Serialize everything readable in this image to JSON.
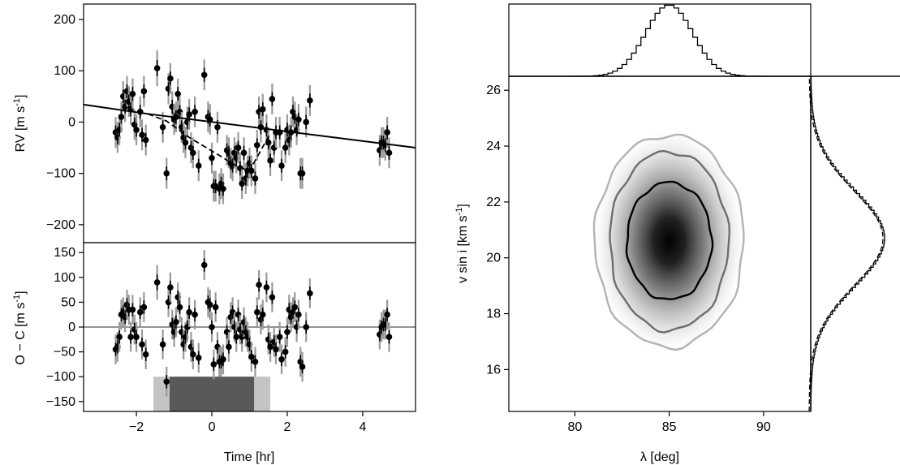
{
  "chart_data": [
    {
      "type": "scatter",
      "panel": "rv",
      "ylabel": "RV [m s",
      "ylabel_sup": "-1",
      "ylabel_end": "]",
      "xlim": [
        -3.4,
        5.4
      ],
      "ylim": [
        -235,
        230
      ],
      "yticks": [
        -200,
        -100,
        0,
        100,
        200
      ],
      "ytick_labels": [
        "−200",
        "−100",
        "0",
        "100",
        "200"
      ],
      "xticks": [
        -2,
        0,
        2,
        4
      ],
      "model_line": [
        [
          -3.4,
          34
        ],
        [
          -1.7,
          16
        ],
        [
          5.4,
          -50
        ]
      ],
      "model_dashed": [
        [
          -1.7,
          16
        ],
        [
          -1.2,
          2
        ],
        [
          -0.6,
          -30
        ],
        [
          0.2,
          -65
        ],
        [
          0.7,
          -88
        ],
        [
          1.0,
          -95
        ],
        [
          1.3,
          -55
        ],
        [
          1.55,
          -22
        ]
      ],
      "points": [
        [
          -2.55,
          -20,
          30
        ],
        [
          -2.5,
          -30,
          30
        ],
        [
          -2.45,
          -15,
          30
        ],
        [
          -2.4,
          10,
          30
        ],
        [
          -2.35,
          50,
          30
        ],
        [
          -2.3,
          30,
          30
        ],
        [
          -2.25,
          60,
          30
        ],
        [
          -2.2,
          40,
          30
        ],
        [
          -2.15,
          25,
          30
        ],
        [
          -2.1,
          55,
          30
        ],
        [
          -2.05,
          -5,
          30
        ],
        [
          -2.0,
          -15,
          30
        ],
        [
          -1.9,
          20,
          30
        ],
        [
          -1.85,
          -25,
          30
        ],
        [
          -1.8,
          60,
          30
        ],
        [
          -1.75,
          -35,
          30
        ],
        [
          -1.45,
          105,
          35
        ],
        [
          -1.3,
          -10,
          30
        ],
        [
          -1.2,
          -100,
          30
        ],
        [
          -1.15,
          65,
          30
        ],
        [
          -1.1,
          85,
          30
        ],
        [
          -1.05,
          30,
          30
        ],
        [
          -1.0,
          5,
          30
        ],
        [
          -0.95,
          10,
          30
        ],
        [
          -0.9,
          55,
          30
        ],
        [
          -0.85,
          20,
          30
        ],
        [
          -0.8,
          -10,
          30
        ],
        [
          -0.75,
          -30,
          30
        ],
        [
          -0.7,
          -40,
          30
        ],
        [
          -0.65,
          0,
          30
        ],
        [
          -0.6,
          15,
          30
        ],
        [
          -0.55,
          -50,
          30
        ],
        [
          -0.5,
          -60,
          30
        ],
        [
          -0.45,
          20,
          30
        ],
        [
          -0.35,
          -85,
          30
        ],
        [
          -0.2,
          92,
          30
        ],
        [
          -0.1,
          10,
          30
        ],
        [
          -0.05,
          5,
          30
        ],
        [
          0.0,
          -70,
          30
        ],
        [
          0.05,
          -125,
          30
        ],
        [
          0.1,
          -125,
          30
        ],
        [
          0.15,
          -10,
          30
        ],
        [
          0.2,
          -130,
          30
        ],
        [
          0.25,
          -120,
          30
        ],
        [
          0.3,
          -130,
          30
        ],
        [
          0.4,
          -55,
          30
        ],
        [
          0.45,
          -60,
          30
        ],
        [
          0.5,
          -80,
          30
        ],
        [
          0.55,
          -85,
          30
        ],
        [
          0.6,
          -60,
          30
        ],
        [
          0.65,
          -70,
          30
        ],
        [
          0.7,
          -50,
          30
        ],
        [
          0.75,
          -90,
          30
        ],
        [
          0.8,
          -120,
          30
        ],
        [
          0.85,
          -60,
          30
        ],
        [
          0.9,
          -110,
          30
        ],
        [
          0.95,
          -95,
          30
        ],
        [
          1.0,
          -80,
          30
        ],
        [
          1.05,
          -95,
          30
        ],
        [
          1.15,
          -110,
          30
        ],
        [
          1.2,
          -45,
          30
        ],
        [
          1.25,
          20,
          30
        ],
        [
          1.3,
          -10,
          30
        ],
        [
          1.35,
          25,
          30
        ],
        [
          1.45,
          -15,
          30
        ],
        [
          1.5,
          -40,
          30
        ],
        [
          1.55,
          -75,
          30
        ],
        [
          1.6,
          45,
          30
        ],
        [
          1.65,
          -50,
          30
        ],
        [
          1.7,
          -20,
          30
        ],
        [
          1.8,
          -20,
          30
        ],
        [
          1.85,
          -85,
          30
        ],
        [
          1.95,
          -50,
          30
        ],
        [
          2.0,
          -15,
          30
        ],
        [
          2.05,
          -35,
          30
        ],
        [
          2.1,
          -20,
          30
        ],
        [
          2.15,
          20,
          30
        ],
        [
          2.2,
          10,
          30
        ],
        [
          2.25,
          -15,
          30
        ],
        [
          2.3,
          5,
          30
        ],
        [
          2.35,
          -100,
          30
        ],
        [
          2.4,
          -100,
          30
        ],
        [
          2.5,
          0,
          30
        ],
        [
          2.6,
          42,
          30
        ],
        [
          4.45,
          -55,
          30
        ],
        [
          4.5,
          -40,
          30
        ],
        [
          4.55,
          -40,
          30
        ],
        [
          4.6,
          -45,
          30
        ],
        [
          4.65,
          -20,
          30
        ],
        [
          4.7,
          -60,
          30
        ]
      ]
    },
    {
      "type": "scatter",
      "panel": "residuals",
      "ylabel": "O − C [m s",
      "ylabel_sup": "-1",
      "ylabel_end": "]",
      "xlabel": "Time [hr]",
      "xlim": [
        -3.4,
        5.4
      ],
      "ylim": [
        -170,
        170
      ],
      "yticks": [
        -150,
        -100,
        -50,
        0,
        50,
        100,
        150
      ],
      "ytick_labels": [
        "−150",
        "−100",
        "−50",
        "0",
        "50",
        "100",
        "150"
      ],
      "xticks": [
        -2,
        0,
        2,
        4
      ],
      "xtick_labels": [
        "−2",
        "0",
        "2",
        "4"
      ],
      "zero_line": 0,
      "transit_bands": [
        {
          "x0": -1.55,
          "x1": 1.55,
          "y0": -170,
          "y1": -100,
          "color": "#c4c4c4"
        },
        {
          "x0": -1.12,
          "x1": 1.12,
          "y0": -170,
          "y1": -100,
          "color": "#595959"
        }
      ],
      "points": [
        [
          -2.55,
          -45,
          30
        ],
        [
          -2.5,
          -40,
          30
        ],
        [
          -2.45,
          -20,
          30
        ],
        [
          -2.4,
          25,
          30
        ],
        [
          -2.35,
          30,
          30
        ],
        [
          -2.3,
          20,
          30
        ],
        [
          -2.25,
          45,
          30
        ],
        [
          -2.2,
          35,
          30
        ],
        [
          -2.15,
          -20,
          30
        ],
        [
          -2.1,
          35,
          30
        ],
        [
          -2.05,
          -5,
          30
        ],
        [
          -2.0,
          -20,
          30
        ],
        [
          -1.9,
          30,
          30
        ],
        [
          -1.85,
          -35,
          30
        ],
        [
          -1.8,
          40,
          30
        ],
        [
          -1.75,
          -55,
          30
        ],
        [
          -1.45,
          90,
          35
        ],
        [
          -1.3,
          -35,
          30
        ],
        [
          -1.2,
          -110,
          30
        ],
        [
          -1.15,
          50,
          30
        ],
        [
          -1.1,
          80,
          30
        ],
        [
          -1.05,
          5,
          30
        ],
        [
          -1.0,
          -10,
          30
        ],
        [
          -0.95,
          10,
          30
        ],
        [
          -0.9,
          60,
          30
        ],
        [
          -0.85,
          40,
          30
        ],
        [
          -0.8,
          -10,
          30
        ],
        [
          -0.75,
          -35,
          30
        ],
        [
          -0.7,
          -20,
          30
        ],
        [
          -0.65,
          0,
          30
        ],
        [
          -0.6,
          30,
          30
        ],
        [
          -0.55,
          -40,
          30
        ],
        [
          -0.5,
          -55,
          30
        ],
        [
          -0.45,
          25,
          30
        ],
        [
          -0.35,
          -62,
          30
        ],
        [
          -0.2,
          125,
          30
        ],
        [
          -0.1,
          50,
          30
        ],
        [
          -0.05,
          45,
          30
        ],
        [
          0.0,
          0,
          30
        ],
        [
          0.05,
          -75,
          30
        ],
        [
          0.1,
          40,
          30
        ],
        [
          0.15,
          -40,
          30
        ],
        [
          0.2,
          -70,
          30
        ],
        [
          0.25,
          -70,
          30
        ],
        [
          0.3,
          -65,
          30
        ],
        [
          0.4,
          -10,
          30
        ],
        [
          0.45,
          -40,
          30
        ],
        [
          0.5,
          20,
          30
        ],
        [
          0.55,
          30,
          30
        ],
        [
          0.6,
          0,
          30
        ],
        [
          0.65,
          -20,
          30
        ],
        [
          0.7,
          25,
          30
        ],
        [
          0.75,
          -5,
          30
        ],
        [
          0.8,
          -20,
          30
        ],
        [
          0.85,
          10,
          30
        ],
        [
          0.9,
          -10,
          30
        ],
        [
          0.95,
          -20,
          30
        ],
        [
          1.0,
          -35,
          30
        ],
        [
          1.05,
          -60,
          30
        ],
        [
          1.15,
          -70,
          30
        ],
        [
          1.2,
          30,
          30
        ],
        [
          1.25,
          85,
          30
        ],
        [
          1.3,
          15,
          30
        ],
        [
          1.35,
          25,
          30
        ],
        [
          1.45,
          80,
          30
        ],
        [
          1.5,
          -25,
          30
        ],
        [
          1.55,
          -40,
          30
        ],
        [
          1.6,
          60,
          30
        ],
        [
          1.65,
          -30,
          30
        ],
        [
          1.7,
          -45,
          30
        ],
        [
          1.8,
          -20,
          30
        ],
        [
          1.85,
          -65,
          30
        ],
        [
          1.95,
          -50,
          30
        ],
        [
          2.0,
          -10,
          30
        ],
        [
          2.05,
          35,
          30
        ],
        [
          2.1,
          20,
          30
        ],
        [
          2.15,
          30,
          30
        ],
        [
          2.2,
          40,
          30
        ],
        [
          2.25,
          0,
          30
        ],
        [
          2.3,
          25,
          30
        ],
        [
          2.35,
          -70,
          30
        ],
        [
          2.4,
          -80,
          30
        ],
        [
          2.5,
          0,
          30
        ],
        [
          2.6,
          68,
          30
        ],
        [
          4.45,
          -15,
          30
        ],
        [
          4.5,
          0,
          30
        ],
        [
          4.55,
          5,
          30
        ],
        [
          4.6,
          5,
          30
        ],
        [
          4.65,
          25,
          30
        ],
        [
          4.7,
          -20,
          30
        ]
      ]
    },
    {
      "type": "heatmap",
      "panel": "posterior",
      "xlabel": "λ [deg]",
      "ylabel": "v sin i [km s",
      "ylabel_sup": "-1",
      "ylabel_end": "]",
      "xlim": [
        76.5,
        92.5
      ],
      "ylim": [
        14.5,
        26.5
      ],
      "xticks": [
        80,
        85,
        90
      ],
      "yticks": [
        16,
        18,
        20,
        22,
        24,
        26
      ],
      "peak": {
        "lambda": 85.0,
        "vsini": 20.6
      },
      "sigma": {
        "lambda": 1.25,
        "vsini": 1.6
      },
      "contours": [
        {
          "level": "1sigma",
          "color": "#000000",
          "rx": 2.25,
          "ry": 2.1
        },
        {
          "level": "2sigma",
          "color": "#6e6e6e",
          "rx": 3.15,
          "ry": 3.2
        },
        {
          "level": "3sigma",
          "color": "#b3b3b3",
          "rx": 3.95,
          "ry": 3.8
        }
      ],
      "marginal_lambda": {
        "type": "histogram",
        "center": 85.0,
        "sigma": 1.25
      },
      "marginal_vsini": {
        "type": "histogram",
        "center": 20.7,
        "sigma": 1.7
      }
    }
  ]
}
